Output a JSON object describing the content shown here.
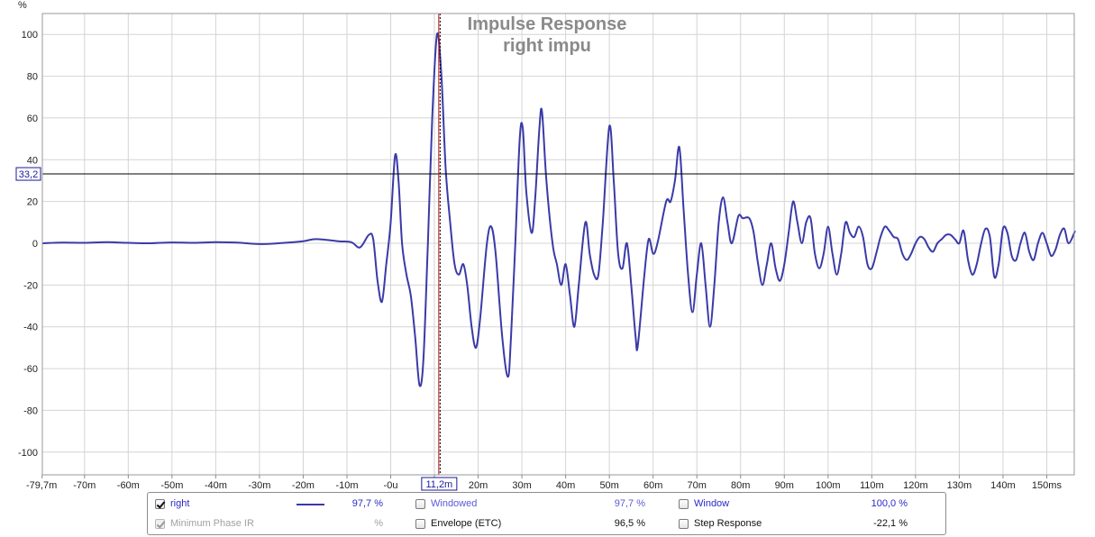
{
  "chart_data": {
    "type": "line",
    "title": "Impulse Response",
    "subtitle": "right impu",
    "ylabel": "%",
    "xlabel": "",
    "ylim": [
      -111,
      110
    ],
    "xlim": [
      -79.7,
      156.5
    ],
    "grid": true,
    "y_ticks": [
      100,
      80,
      60,
      40,
      20,
      0,
      -20,
      -40,
      -60,
      -80,
      -100
    ],
    "y_tick_labels": [
      "100",
      "80",
      "60",
      "40",
      "20",
      "0",
      "-20",
      "-40",
      "-60",
      "-80",
      "-100"
    ],
    "x_ticks": [
      -79.7,
      -70,
      -60,
      -50,
      -40,
      -30,
      -20,
      -10,
      0,
      10,
      20,
      30,
      40,
      50,
      60,
      70,
      80,
      90,
      100,
      110,
      120,
      130,
      140,
      150
    ],
    "x_tick_labels": [
      "-79,7m",
      "-70m",
      "-60m",
      "-50m",
      "-40m",
      "-30m",
      "-20m",
      "-10m",
      "-0u",
      "",
      "20m",
      "30m",
      "40m",
      "50m",
      "60m",
      "70m",
      "80m",
      "90m",
      "100m",
      "110m",
      "120m",
      "130m",
      "140m",
      "150ms"
    ],
    "cursor": {
      "x": 11.2,
      "x_label": "11,2m",
      "y": 33.2,
      "y_label": "33,2"
    },
    "series": [
      {
        "name": "right",
        "color": "#3a3aa8",
        "points": [
          [
            -79.7,
            0
          ],
          [
            -75,
            0.3
          ],
          [
            -70,
            0.2
          ],
          [
            -65,
            0.5
          ],
          [
            -60,
            0.2
          ],
          [
            -55,
            0
          ],
          [
            -50,
            0.4
          ],
          [
            -45,
            0.2
          ],
          [
            -40,
            0.5
          ],
          [
            -35,
            0.3
          ],
          [
            -30,
            -0.4
          ],
          [
            -25,
            0.1
          ],
          [
            -20,
            1
          ],
          [
            -17,
            2
          ],
          [
            -12,
            1
          ],
          [
            -9,
            0.5
          ],
          [
            -7,
            -2
          ],
          [
            -5,
            4
          ],
          [
            -4,
            2
          ],
          [
            -3,
            -18
          ],
          [
            -2,
            -28
          ],
          [
            -1,
            -10
          ],
          [
            0,
            10
          ],
          [
            1,
            42
          ],
          [
            1.8,
            30
          ],
          [
            2.6,
            0
          ],
          [
            3.6,
            -15
          ],
          [
            4.6,
            -25
          ],
          [
            5.6,
            -45
          ],
          [
            6.6,
            -68
          ],
          [
            7.5,
            -55
          ],
          [
            8.5,
            0
          ],
          [
            9.5,
            60
          ],
          [
            10.6,
            100
          ],
          [
            11.6,
            80
          ],
          [
            12.6,
            35
          ],
          [
            13.6,
            10
          ],
          [
            14.6,
            -10
          ],
          [
            15.6,
            -15
          ],
          [
            16.6,
            -10
          ],
          [
            17.5,
            -20
          ],
          [
            18.5,
            -40
          ],
          [
            19.5,
            -50
          ],
          [
            20.5,
            -35
          ],
          [
            22,
            0
          ],
          [
            23,
            8
          ],
          [
            24,
            -5
          ],
          [
            25.5,
            -45
          ],
          [
            26.8,
            -64
          ],
          [
            27.5,
            -45
          ],
          [
            28.5,
            0
          ],
          [
            29.5,
            50
          ],
          [
            30.2,
            55
          ],
          [
            31,
            25
          ],
          [
            32.2,
            5
          ],
          [
            33,
            20
          ],
          [
            34,
            55
          ],
          [
            34.6,
            63
          ],
          [
            35.6,
            30
          ],
          [
            37,
            0
          ],
          [
            38,
            -10
          ],
          [
            39,
            -20
          ],
          [
            40,
            -10
          ],
          [
            41,
            -25
          ],
          [
            42,
            -40
          ],
          [
            43,
            -20
          ],
          [
            44.5,
            10
          ],
          [
            45.5,
            -5
          ],
          [
            46.5,
            -15
          ],
          [
            47.5,
            -15
          ],
          [
            48.5,
            10
          ],
          [
            50,
            56
          ],
          [
            51,
            30
          ],
          [
            52,
            -5
          ],
          [
            53,
            -12
          ],
          [
            54,
            0
          ],
          [
            55,
            -20
          ],
          [
            56,
            -45
          ],
          [
            56.5,
            -49
          ],
          [
            58,
            -15
          ],
          [
            59,
            2
          ],
          [
            60,
            -5
          ],
          [
            61,
            0
          ],
          [
            63,
            20
          ],
          [
            64,
            20
          ],
          [
            65,
            30
          ],
          [
            66,
            46
          ],
          [
            67,
            15
          ],
          [
            68,
            -15
          ],
          [
            69,
            -33
          ],
          [
            70,
            -15
          ],
          [
            71,
            0
          ],
          [
            72,
            -20
          ],
          [
            73,
            -40
          ],
          [
            74,
            -20
          ],
          [
            75,
            10
          ],
          [
            76,
            22
          ],
          [
            77,
            10
          ],
          [
            78,
            0
          ],
          [
            79.5,
            13
          ],
          [
            80.5,
            12
          ],
          [
            82,
            12
          ],
          [
            83,
            5
          ],
          [
            84,
            -10
          ],
          [
            85,
            -20
          ],
          [
            86,
            -10
          ],
          [
            87,
            0
          ],
          [
            88,
            -12
          ],
          [
            89,
            -18
          ],
          [
            90,
            -10
          ],
          [
            91,
            5
          ],
          [
            92,
            20
          ],
          [
            93,
            10
          ],
          [
            94,
            0
          ],
          [
            95,
            10
          ],
          [
            96,
            12
          ],
          [
            97,
            -5
          ],
          [
            98,
            -12
          ],
          [
            99,
            -5
          ],
          [
            100,
            8
          ],
          [
            101,
            -5
          ],
          [
            102,
            -15
          ],
          [
            103,
            -5
          ],
          [
            104,
            10
          ],
          [
            105,
            5
          ],
          [
            106,
            3
          ],
          [
            107,
            8
          ],
          [
            108,
            3
          ],
          [
            109,
            -10
          ],
          [
            110,
            -12
          ],
          [
            111,
            -5
          ],
          [
            112,
            3
          ],
          [
            113,
            8
          ],
          [
            114,
            6
          ],
          [
            115,
            3
          ],
          [
            116,
            2
          ],
          [
            117,
            -5
          ],
          [
            118,
            -8
          ],
          [
            119,
            -5
          ],
          [
            120,
            0
          ],
          [
            121,
            3
          ],
          [
            122,
            2
          ],
          [
            123,
            -2
          ],
          [
            124,
            -4
          ],
          [
            125,
            0
          ],
          [
            126,
            2
          ],
          [
            127,
            4
          ],
          [
            128,
            4
          ],
          [
            129,
            2
          ],
          [
            130,
            0
          ],
          [
            131,
            6
          ],
          [
            132,
            -8
          ],
          [
            133,
            -15
          ],
          [
            134,
            -10
          ],
          [
            135,
            0
          ],
          [
            136,
            7
          ],
          [
            137,
            3
          ],
          [
            138,
            -16
          ],
          [
            139,
            -10
          ],
          [
            140,
            7
          ],
          [
            141,
            5
          ],
          [
            142,
            -6
          ],
          [
            143,
            -8
          ],
          [
            144,
            0
          ],
          [
            145,
            5
          ],
          [
            146,
            -4
          ],
          [
            147,
            -8
          ],
          [
            148,
            0
          ],
          [
            149,
            5
          ],
          [
            150,
            0
          ],
          [
            151,
            -6
          ],
          [
            152,
            -3
          ],
          [
            153,
            4
          ],
          [
            154,
            7
          ],
          [
            155,
            0
          ],
          [
            156.5,
            6
          ]
        ]
      }
    ]
  },
  "legend": {
    "rows": [
      [
        {
          "label": "right",
          "checked": true,
          "state": "active",
          "value": "97,7 %",
          "swatch": true
        },
        {
          "label": "Windowed",
          "checked": false,
          "state": "inactive",
          "value": "97,7 %"
        },
        {
          "label": "Window",
          "checked": false,
          "state": "normal",
          "value": "100,0 %"
        }
      ],
      [
        {
          "label": "Minimum Phase IR",
          "checked": true,
          "state": "disabled",
          "value": "%"
        },
        {
          "label": "Envelope (ETC)",
          "checked": false,
          "state": "normal",
          "value": "96,5 %"
        },
        {
          "label": "Step Response",
          "checked": false,
          "state": "normal",
          "value": "-22,1 %"
        }
      ]
    ]
  }
}
